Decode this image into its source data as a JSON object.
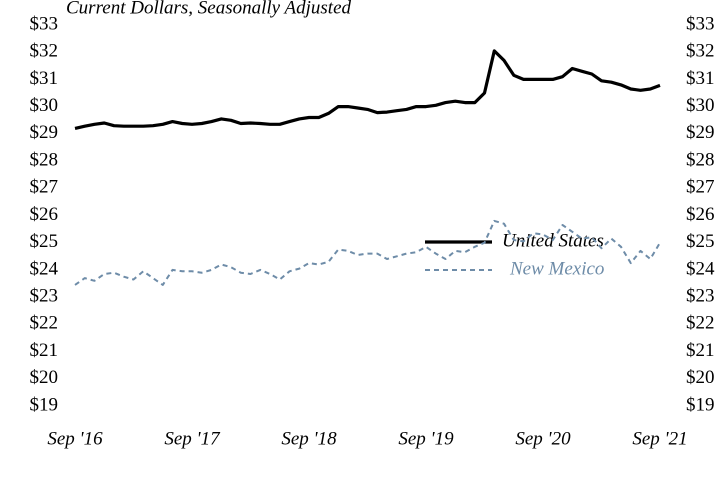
{
  "chart_data": {
    "type": "line",
    "subtitle": "Current Dollars, Seasonally Adjusted",
    "categories": [
      "Sep '16",
      null,
      null,
      null,
      null,
      null,
      null,
      null,
      null,
      null,
      null,
      null,
      "Sep '17",
      null,
      null,
      null,
      null,
      null,
      null,
      null,
      null,
      null,
      null,
      null,
      "Sep '18",
      null,
      null,
      null,
      null,
      null,
      null,
      null,
      null,
      null,
      null,
      null,
      "Sep '19",
      null,
      null,
      null,
      null,
      null,
      null,
      null,
      null,
      null,
      null,
      null,
      "Sep '20",
      null,
      null,
      null,
      null,
      null,
      null,
      null,
      null,
      null,
      null,
      null,
      "Sep '21"
    ],
    "series": [
      {
        "name": "United States",
        "color": "#000000",
        "style": "solid",
        "values": [
          29.2,
          29.28,
          29.35,
          29.4,
          29.3,
          29.28,
          29.28,
          29.28,
          29.3,
          29.35,
          29.45,
          29.38,
          29.35,
          29.38,
          29.45,
          29.55,
          29.5,
          29.38,
          29.4,
          29.38,
          29.35,
          29.35,
          29.45,
          29.55,
          29.6,
          29.6,
          29.75,
          30.0,
          30.0,
          29.95,
          29.9,
          29.78,
          29.8,
          29.85,
          29.9,
          30.0,
          30.0,
          30.05,
          30.15,
          30.2,
          30.15,
          30.15,
          30.5,
          32.05,
          31.7,
          31.15,
          31.0,
          31.0,
          31.0,
          31.0,
          31.1,
          31.4,
          31.3,
          31.2,
          30.95,
          30.9,
          30.8,
          30.65,
          30.6,
          30.65,
          30.78
        ]
      },
      {
        "name": "New Mexico",
        "color": "#6e8ca8",
        "style": "dashed",
        "values": [
          23.45,
          23.7,
          23.6,
          23.85,
          23.9,
          23.75,
          23.65,
          23.95,
          23.7,
          23.45,
          24.0,
          23.95,
          23.95,
          23.9,
          24.0,
          24.2,
          24.1,
          23.9,
          23.85,
          24.0,
          23.85,
          23.65,
          23.95,
          24.05,
          24.25,
          24.2,
          24.3,
          24.75,
          24.7,
          24.55,
          24.6,
          24.6,
          24.4,
          24.5,
          24.6,
          24.65,
          24.85,
          24.6,
          24.4,
          24.7,
          24.65,
          24.85,
          25.0,
          25.8,
          25.7,
          25.1,
          25.05,
          25.35,
          25.3,
          25.1,
          25.65,
          25.4,
          25.15,
          25.2,
          24.8,
          25.15,
          24.85,
          24.25,
          24.7,
          24.4,
          25.0
        ]
      }
    ],
    "ylim": [
      19,
      33
    ],
    "yticks": [
      {
        "value": 19,
        "label": "$19"
      },
      {
        "value": 20,
        "label": "$20"
      },
      {
        "value": 21,
        "label": "$21"
      },
      {
        "value": 22,
        "label": "$22"
      },
      {
        "value": 23,
        "label": "$23"
      },
      {
        "value": 24,
        "label": "$24"
      },
      {
        "value": 25,
        "label": "$25"
      },
      {
        "value": 26,
        "label": "$26"
      },
      {
        "value": 27,
        "label": "$27"
      },
      {
        "value": 28,
        "label": "$28"
      },
      {
        "value": 29,
        "label": "$29"
      },
      {
        "value": 30,
        "label": "$30"
      },
      {
        "value": 31,
        "label": "$31"
      },
      {
        "value": 32,
        "label": "$32"
      },
      {
        "value": 33,
        "label": "$33"
      }
    ],
    "y2lim": [
      19,
      33
    ],
    "y2ticks": [
      {
        "value": 19,
        "label": "$19"
      },
      {
        "value": 20,
        "label": "$20"
      },
      {
        "value": 21,
        "label": "$21"
      },
      {
        "value": 22,
        "label": "$22"
      },
      {
        "value": 23,
        "label": "$23"
      },
      {
        "value": 24,
        "label": "$24"
      },
      {
        "value": 25,
        "label": "$25"
      },
      {
        "value": 26,
        "label": "$26"
      },
      {
        "value": 27,
        "label": "$27"
      },
      {
        "value": 28,
        "label": "$28"
      },
      {
        "value": 29,
        "label": "$29"
      },
      {
        "value": 30,
        "label": "$30"
      },
      {
        "value": 31,
        "label": "$31"
      },
      {
        "value": 32,
        "label": "$32"
      },
      {
        "value": 33,
        "label": "$33"
      }
    ],
    "grid": false
  }
}
